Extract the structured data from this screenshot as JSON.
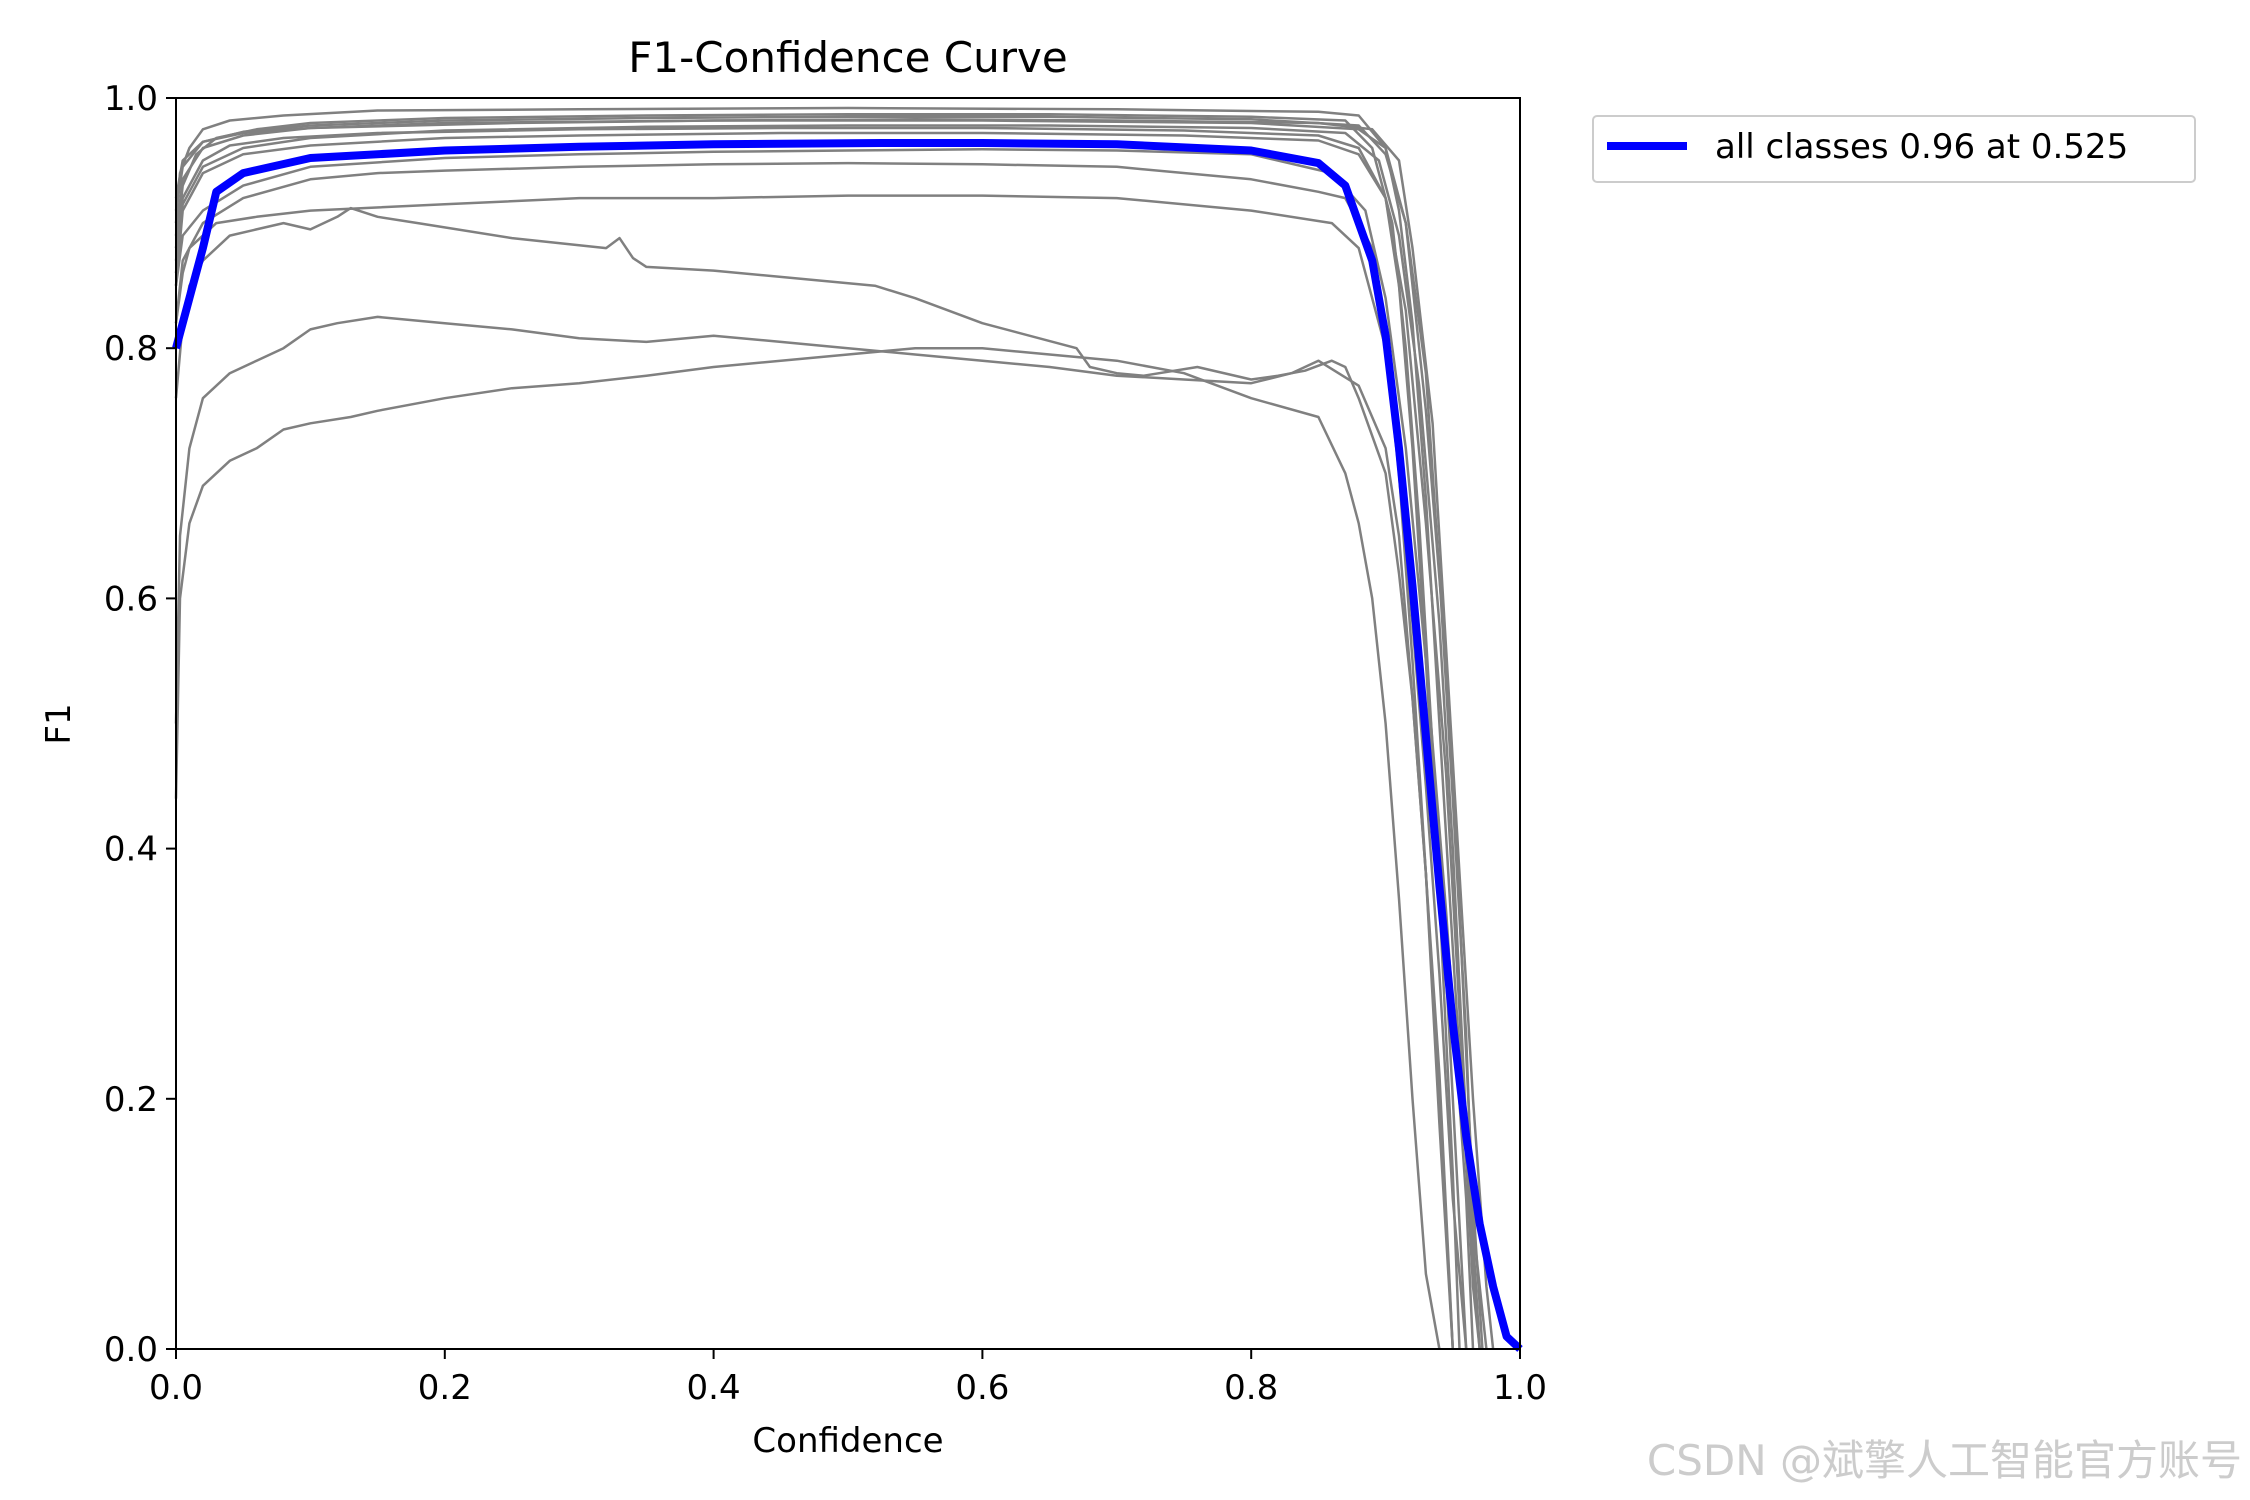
{
  "chart_data": {
    "type": "line",
    "title": "F1-Confidence Curve",
    "xlabel": "Confidence",
    "ylabel": "F1",
    "xlim": [
      0,
      1
    ],
    "ylim": [
      0,
      1
    ],
    "xticks": [
      "0.0",
      "0.2",
      "0.4",
      "0.6",
      "0.8",
      "1.0"
    ],
    "yticks": [
      "0.0",
      "0.2",
      "0.4",
      "0.6",
      "0.8",
      "1.0"
    ],
    "grid": false,
    "legend_position": "outside-top-right",
    "colors": {
      "classes": "#808080",
      "all_classes": "#0000ff"
    },
    "legend": [
      {
        "label": "all classes 0.96 at 0.525",
        "color": "#0000ff"
      }
    ],
    "series": [
      {
        "name": "all classes 0.96 at 0.525",
        "color": "#0000ff",
        "x": [
          0.0,
          0.01,
          0.02,
          0.03,
          0.05,
          0.1,
          0.2,
          0.3,
          0.4,
          0.525,
          0.6,
          0.7,
          0.8,
          0.85,
          0.87,
          0.89,
          0.9,
          0.91,
          0.92,
          0.93,
          0.94,
          0.95,
          0.96,
          0.97,
          0.98,
          0.99,
          1.0
        ],
        "y": [
          0.8,
          0.84,
          0.88,
          0.925,
          0.94,
          0.952,
          0.958,
          0.961,
          0.963,
          0.964,
          0.964,
          0.963,
          0.958,
          0.948,
          0.93,
          0.87,
          0.81,
          0.72,
          0.61,
          0.49,
          0.37,
          0.26,
          0.17,
          0.1,
          0.05,
          0.01,
          0.0
        ]
      },
      {
        "name": "",
        "color": "#808080",
        "x": [
          0.0,
          0.003,
          0.01,
          0.02,
          0.04,
          0.08,
          0.15,
          0.3,
          0.5,
          0.7,
          0.85,
          0.88,
          0.9,
          0.91,
          0.92,
          0.93,
          0.94,
          0.95,
          0.96,
          0.965,
          0.97
        ],
        "y": [
          0.9,
          0.94,
          0.96,
          0.975,
          0.982,
          0.986,
          0.99,
          0.991,
          0.992,
          0.991,
          0.989,
          0.986,
          0.96,
          0.91,
          0.82,
          0.68,
          0.5,
          0.32,
          0.15,
          0.05,
          0.0
        ]
      },
      {
        "name": "",
        "color": "#808080",
        "x": [
          0.0,
          0.005,
          0.015,
          0.03,
          0.06,
          0.1,
          0.2,
          0.35,
          0.5,
          0.65,
          0.8,
          0.87,
          0.89,
          0.905,
          0.915,
          0.925,
          0.935,
          0.945,
          0.955,
          0.96
        ],
        "y": [
          0.88,
          0.93,
          0.955,
          0.968,
          0.975,
          0.98,
          0.984,
          0.986,
          0.987,
          0.987,
          0.985,
          0.982,
          0.96,
          0.9,
          0.8,
          0.66,
          0.48,
          0.3,
          0.1,
          0.0
        ]
      },
      {
        "name": "",
        "color": "#808080",
        "x": [
          0.0,
          0.005,
          0.02,
          0.05,
          0.1,
          0.2,
          0.35,
          0.5,
          0.65,
          0.8,
          0.88,
          0.9,
          0.915,
          0.93,
          0.94,
          0.95,
          0.96,
          0.965,
          0.975
        ],
        "y": [
          0.91,
          0.945,
          0.965,
          0.973,
          0.978,
          0.982,
          0.984,
          0.985,
          0.985,
          0.983,
          0.978,
          0.955,
          0.9,
          0.78,
          0.62,
          0.44,
          0.25,
          0.1,
          0.0
        ]
      },
      {
        "name": "",
        "color": "#808080",
        "x": [
          0.0,
          0.005,
          0.02,
          0.05,
          0.1,
          0.2,
          0.3,
          0.45,
          0.6,
          0.75,
          0.85,
          0.88,
          0.9,
          0.91,
          0.92,
          0.93,
          0.94,
          0.95,
          0.955
        ],
        "y": [
          0.85,
          0.91,
          0.94,
          0.955,
          0.962,
          0.968,
          0.97,
          0.972,
          0.972,
          0.97,
          0.966,
          0.955,
          0.92,
          0.85,
          0.72,
          0.55,
          0.36,
          0.14,
          0.0
        ]
      },
      {
        "name": "",
        "color": "#808080",
        "x": [
          0.0,
          0.005,
          0.02,
          0.05,
          0.1,
          0.25,
          0.4,
          0.55,
          0.7,
          0.85,
          0.89,
          0.91,
          0.92,
          0.935,
          0.945,
          0.955,
          0.965,
          0.975,
          0.98
        ],
        "y": [
          0.89,
          0.935,
          0.96,
          0.97,
          0.976,
          0.98,
          0.982,
          0.983,
          0.982,
          0.98,
          0.975,
          0.95,
          0.88,
          0.74,
          0.56,
          0.38,
          0.2,
          0.05,
          0.0
        ]
      },
      {
        "name": "",
        "color": "#808080",
        "x": [
          0.0,
          0.005,
          0.02,
          0.05,
          0.1,
          0.2,
          0.35,
          0.5,
          0.65,
          0.8,
          0.87,
          0.895,
          0.91,
          0.925,
          0.94,
          0.95,
          0.96,
          0.97
        ],
        "y": [
          0.86,
          0.915,
          0.945,
          0.96,
          0.968,
          0.974,
          0.977,
          0.978,
          0.978,
          0.976,
          0.972,
          0.95,
          0.89,
          0.77,
          0.58,
          0.4,
          0.18,
          0.0
        ]
      },
      {
        "name": "",
        "color": "#808080",
        "x": [
          0.0,
          0.005,
          0.02,
          0.05,
          0.1,
          0.2,
          0.4,
          0.6,
          0.8,
          0.88,
          0.9,
          0.915,
          0.93,
          0.945,
          0.955,
          0.965,
          0.972
        ],
        "y": [
          0.92,
          0.95,
          0.965,
          0.972,
          0.976,
          0.98,
          0.982,
          0.982,
          0.98,
          0.975,
          0.96,
          0.9,
          0.75,
          0.55,
          0.35,
          0.12,
          0.0
        ]
      },
      {
        "name": "",
        "color": "#808080",
        "x": [
          0.0,
          0.005,
          0.02,
          0.04,
          0.08,
          0.15,
          0.3,
          0.45,
          0.6,
          0.75,
          0.85,
          0.88,
          0.9,
          0.915,
          0.93,
          0.945,
          0.955,
          0.965,
          0.97
        ],
        "y": [
          0.87,
          0.92,
          0.95,
          0.962,
          0.968,
          0.972,
          0.975,
          0.976,
          0.976,
          0.974,
          0.97,
          0.96,
          0.92,
          0.83,
          0.66,
          0.46,
          0.27,
          0.06,
          0.0
        ]
      },
      {
        "name": "",
        "color": "#808080",
        "x": [
          0.0,
          0.005,
          0.02,
          0.05,
          0.1,
          0.2,
          0.3,
          0.4,
          0.5,
          0.6,
          0.7,
          0.8,
          0.86,
          0.885,
          0.9,
          0.915,
          0.93,
          0.945,
          0.96,
          0.965
        ],
        "y": [
          0.85,
          0.89,
          0.91,
          0.93,
          0.945,
          0.952,
          0.955,
          0.957,
          0.958,
          0.959,
          0.958,
          0.955,
          0.94,
          0.91,
          0.84,
          0.72,
          0.55,
          0.35,
          0.12,
          0.0
        ]
      },
      {
        "name": "",
        "color": "#808080",
        "x": [
          0.0,
          0.005,
          0.01,
          0.03,
          0.06,
          0.1,
          0.2,
          0.3,
          0.4,
          0.5,
          0.6,
          0.7,
          0.8,
          0.86,
          0.88,
          0.9,
          0.91,
          0.92,
          0.93,
          0.94,
          0.95,
          0.96
        ],
        "y": [
          0.82,
          0.86,
          0.88,
          0.9,
          0.905,
          0.91,
          0.915,
          0.92,
          0.92,
          0.922,
          0.922,
          0.92,
          0.91,
          0.9,
          0.88,
          0.8,
          0.7,
          0.58,
          0.45,
          0.3,
          0.12,
          0.0
        ]
      },
      {
        "name": "",
        "color": "#808080",
        "x": [
          0.0,
          0.005,
          0.02,
          0.05,
          0.1,
          0.15,
          0.2,
          0.3,
          0.4,
          0.5,
          0.6,
          0.7,
          0.8,
          0.85,
          0.87,
          0.89,
          0.9,
          0.91,
          0.92,
          0.93,
          0.94,
          0.95
        ],
        "y": [
          0.82,
          0.87,
          0.9,
          0.92,
          0.935,
          0.94,
          0.942,
          0.945,
          0.947,
          0.948,
          0.947,
          0.945,
          0.935,
          0.925,
          0.92,
          0.88,
          0.82,
          0.7,
          0.55,
          0.38,
          0.18,
          0.0
        ]
      },
      {
        "name": "",
        "color": "#808080",
        "x": [
          0.0,
          0.005,
          0.01,
          0.02,
          0.04,
          0.08,
          0.1,
          0.12,
          0.13,
          0.15,
          0.18,
          0.25,
          0.32,
          0.33,
          0.34,
          0.35,
          0.4,
          0.52,
          0.55,
          0.6,
          0.67,
          0.68,
          0.7,
          0.72,
          0.76,
          0.8,
          0.82,
          0.84,
          0.86,
          0.87,
          0.88,
          0.9,
          0.91,
          0.92,
          0.93,
          0.94,
          0.95
        ],
        "y": [
          0.76,
          0.82,
          0.85,
          0.87,
          0.89,
          0.9,
          0.895,
          0.905,
          0.912,
          0.905,
          0.9,
          0.888,
          0.88,
          0.888,
          0.872,
          0.865,
          0.862,
          0.85,
          0.84,
          0.82,
          0.8,
          0.785,
          0.78,
          0.778,
          0.785,
          0.775,
          0.778,
          0.782,
          0.79,
          0.785,
          0.76,
          0.7,
          0.62,
          0.52,
          0.38,
          0.22,
          0.0
        ]
      },
      {
        "name": "",
        "color": "#808080",
        "x": [
          0.0,
          0.003,
          0.01,
          0.02,
          0.04,
          0.06,
          0.08,
          0.1,
          0.12,
          0.15,
          0.2,
          0.25,
          0.3,
          0.35,
          0.4,
          0.45,
          0.5,
          0.55,
          0.6,
          0.65,
          0.7,
          0.75,
          0.8,
          0.83,
          0.85,
          0.88,
          0.9,
          0.91,
          0.92,
          0.93,
          0.94,
          0.95
        ],
        "y": [
          0.5,
          0.65,
          0.72,
          0.76,
          0.78,
          0.79,
          0.8,
          0.815,
          0.82,
          0.825,
          0.82,
          0.815,
          0.808,
          0.805,
          0.81,
          0.805,
          0.8,
          0.795,
          0.79,
          0.785,
          0.778,
          0.775,
          0.772,
          0.78,
          0.79,
          0.77,
          0.72,
          0.65,
          0.52,
          0.38,
          0.2,
          0.0
        ]
      },
      {
        "name": "",
        "color": "#808080",
        "x": [
          0.0,
          0.003,
          0.01,
          0.02,
          0.04,
          0.06,
          0.08,
          0.1,
          0.13,
          0.15,
          0.2,
          0.25,
          0.3,
          0.35,
          0.4,
          0.45,
          0.5,
          0.55,
          0.6,
          0.65,
          0.7,
          0.75,
          0.8,
          0.85,
          0.87,
          0.88,
          0.89,
          0.9,
          0.91,
          0.92,
          0.93,
          0.94
        ],
        "y": [
          0.44,
          0.6,
          0.66,
          0.69,
          0.71,
          0.72,
          0.735,
          0.74,
          0.745,
          0.75,
          0.76,
          0.768,
          0.772,
          0.778,
          0.785,
          0.79,
          0.795,
          0.8,
          0.8,
          0.795,
          0.79,
          0.78,
          0.76,
          0.745,
          0.7,
          0.66,
          0.6,
          0.5,
          0.36,
          0.2,
          0.06,
          0.0
        ]
      }
    ]
  },
  "watermark": "CSDN @斌擎人工智能官方账号"
}
